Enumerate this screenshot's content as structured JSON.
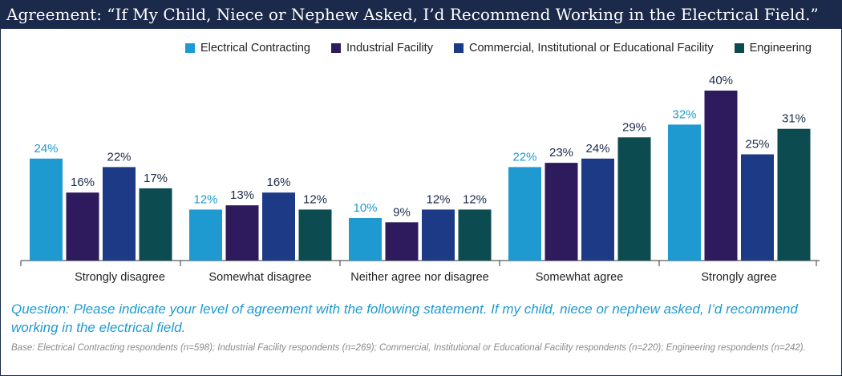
{
  "title": "Agreement: “If My Child, Niece or Nephew Asked, I’d Recommend Working in the Electrical Field.”",
  "question": "Question: Please indicate your level of agreement with the following statement. If my child, niece or nephew asked, I’d recommend working in the electrical field.",
  "base": "Base: Electrical Contracting respondents (n=598); Industrial Facility respondents (n=269); Commercial, Institutional or Educational Facility respondents (n=220); Engineering respondents (n=242).",
  "colors": {
    "header_bg": "#1b2a4a",
    "label_highlight": "#1e9ad0",
    "label_default": "#1b2a4a"
  },
  "chart_data": {
    "type": "bar",
    "title": "Agreement: “If My Child, Niece or Nephew Asked, I’d Recommend Working in the Electrical Field.”",
    "categories": [
      "Strongly disagree",
      "Somewhat disagree",
      "Neither agree nor disagree",
      "Somewhat agree",
      "Strongly agree"
    ],
    "series": [
      {
        "name": "Electrical Contracting",
        "color": "#1e9ad0",
        "values": [
          24,
          12,
          10,
          22,
          32
        ]
      },
      {
        "name": "Industrial Facility",
        "color": "#2d1b5e",
        "values": [
          16,
          13,
          9,
          23,
          40
        ]
      },
      {
        "name": "Commercial, Institutional or Educational Facility",
        "color": "#1c3a86",
        "values": [
          22,
          16,
          12,
          24,
          25
        ]
      },
      {
        "name": "Engineering",
        "color": "#0c4b4f",
        "values": [
          17,
          12,
          12,
          29,
          31
        ]
      }
    ],
    "value_suffix": "%",
    "ylim": [
      0,
      40
    ],
    "xlabel": "",
    "ylabel": "",
    "grid": false,
    "legend_position": "top-right"
  }
}
